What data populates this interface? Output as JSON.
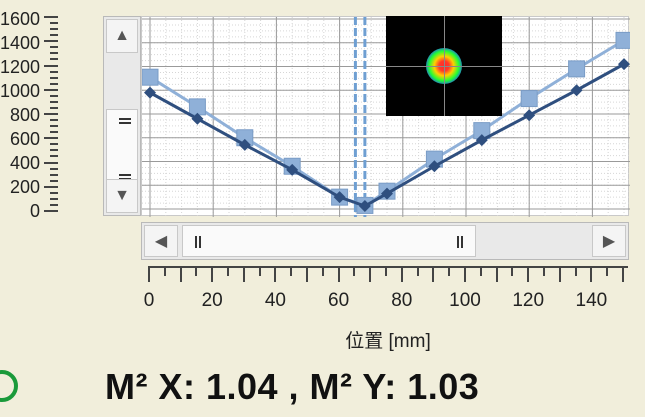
{
  "chart_data": {
    "type": "line",
    "xlabel": "位置 [mm]",
    "xlim": [
      0,
      150
    ],
    "ylim": [
      0,
      1600
    ],
    "x_ticks": [
      "0",
      "20",
      "40",
      "60",
      "80",
      "100",
      "120",
      "140"
    ],
    "y_ticks": [
      "1600",
      "1400",
      "1200",
      "1000",
      "800",
      "600",
      "400",
      "200",
      "0"
    ],
    "grid": true,
    "series": [
      {
        "color": "#2f4f7f",
        "marker": "diamond",
        "x": [
          0,
          15,
          30,
          45,
          60,
          68,
          75,
          90,
          105,
          120,
          135,
          150
        ],
        "y": [
          980,
          760,
          540,
          330,
          100,
          25,
          130,
          360,
          580,
          790,
          1000,
          1220
        ]
      },
      {
        "color": "#8fb0d8",
        "marker": "square",
        "x": [
          0,
          15,
          30,
          45,
          60,
          68,
          75,
          90,
          105,
          120,
          135,
          150
        ],
        "y": [
          1110,
          860,
          600,
          360,
          100,
          30,
          150,
          420,
          660,
          930,
          1180,
          1420
        ]
      }
    ],
    "markers": [
      {
        "x": 65,
        "color": "#6f9fd2"
      },
      {
        "x": 68,
        "color": "#6f9fd2"
      }
    ]
  },
  "beam_profile_inset": {
    "colors": [
      "#ff2a2a",
      "#ffd000",
      "#22ff33",
      "#1f4aff",
      "#000000"
    ]
  },
  "scroll": {
    "up_arrow": "▲",
    "down_arrow": "▼",
    "left_arrow": "◀",
    "right_arrow": "▶"
  },
  "result": {
    "text": "M² X: 1.04 , M² Y: 1.03"
  },
  "status": {
    "color": "#1a9a3a"
  }
}
